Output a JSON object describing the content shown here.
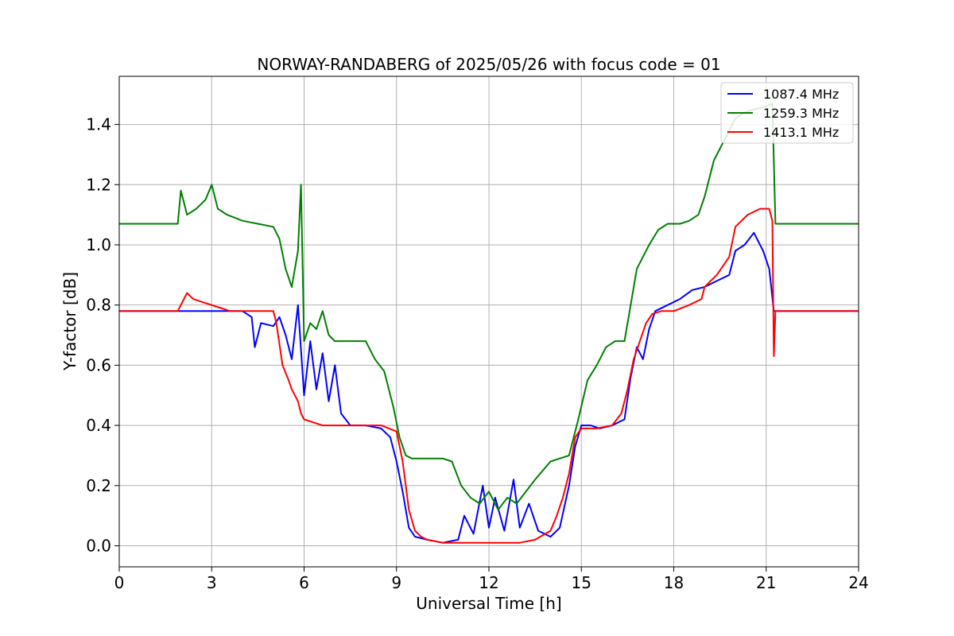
{
  "chart_data": {
    "type": "line",
    "title": "NORWAY-RANDABERG of 2025/05/26 with focus code = 01",
    "xlabel": "Universal Time [h]",
    "ylabel": "Y-factor [dB]",
    "xlim": [
      0,
      24
    ],
    "ylim": [
      -0.07,
      1.56
    ],
    "xticks": [
      0,
      3,
      6,
      9,
      12,
      15,
      18,
      21,
      24
    ],
    "xtick_labels": [
      "0",
      "3",
      "6",
      "9",
      "12",
      "15",
      "18",
      "21",
      "24"
    ],
    "yticks": [
      0.0,
      0.2,
      0.4,
      0.6,
      0.8,
      1.0,
      1.2,
      1.4
    ],
    "ytick_labels": [
      "0.0",
      "0.2",
      "0.4",
      "0.6",
      "0.8",
      "1.0",
      "1.2",
      "1.4"
    ],
    "grid": true,
    "legend_position": "top-right",
    "series": [
      {
        "name": "1087.4 MHz",
        "color": "#0000ff",
        "x": [
          0,
          0.5,
          1,
          1.5,
          2,
          2.5,
          3,
          3.5,
          4,
          4.3,
          4.4,
          4.6,
          5,
          5.2,
          5.4,
          5.6,
          5.8,
          6.0,
          6.2,
          6.4,
          6.6,
          6.8,
          7.0,
          7.2,
          7.5,
          8,
          8.5,
          8.8,
          9.0,
          9.2,
          9.4,
          9.6,
          10,
          10.5,
          11,
          11.2,
          11.5,
          11.8,
          12.0,
          12.2,
          12.5,
          12.8,
          13.0,
          13.3,
          13.6,
          14.0,
          14.3,
          14.6,
          14.8,
          15.0,
          15.3,
          15.6,
          16.0,
          16.4,
          16.6,
          16.8,
          17.0,
          17.2,
          17.4,
          17.8,
          18.2,
          18.6,
          19.0,
          19.4,
          19.8,
          20.0,
          20.3,
          20.6,
          20.9,
          21.1,
          21.25,
          21.3,
          21.6,
          22,
          22.5,
          23,
          23.5,
          24
        ],
        "y": [
          0.78,
          0.78,
          0.78,
          0.78,
          0.78,
          0.78,
          0.78,
          0.78,
          0.78,
          0.76,
          0.66,
          0.74,
          0.73,
          0.76,
          0.7,
          0.62,
          0.8,
          0.5,
          0.68,
          0.52,
          0.64,
          0.48,
          0.6,
          0.44,
          0.4,
          0.4,
          0.39,
          0.36,
          0.28,
          0.18,
          0.06,
          0.03,
          0.02,
          0.01,
          0.02,
          0.1,
          0.04,
          0.2,
          0.06,
          0.16,
          0.05,
          0.22,
          0.06,
          0.14,
          0.05,
          0.03,
          0.06,
          0.2,
          0.33,
          0.4,
          0.4,
          0.39,
          0.4,
          0.42,
          0.56,
          0.66,
          0.62,
          0.72,
          0.78,
          0.8,
          0.82,
          0.85,
          0.86,
          0.88,
          0.9,
          0.98,
          1.0,
          1.04,
          0.98,
          0.92,
          0.78,
          0.78,
          0.78,
          0.78,
          0.78,
          0.78,
          0.78,
          0.78
        ]
      },
      {
        "name": "1259.3 MHz",
        "color": "#008000",
        "x": [
          0,
          0.5,
          1,
          1.5,
          1.9,
          2.0,
          2.2,
          2.5,
          2.8,
          3.0,
          3.2,
          3.5,
          4,
          4.5,
          5,
          5.2,
          5.4,
          5.6,
          5.8,
          5.9,
          6.0,
          6.2,
          6.4,
          6.6,
          6.8,
          7.0,
          7.5,
          8,
          8.3,
          8.6,
          8.9,
          9.1,
          9.3,
          9.5,
          10,
          10.5,
          10.8,
          11.1,
          11.4,
          11.7,
          12.0,
          12.3,
          12.6,
          12.9,
          13.2,
          13.5,
          14,
          14.3,
          14.6,
          14.9,
          15.2,
          15.5,
          15.8,
          16.1,
          16.4,
          16.6,
          16.8,
          17.0,
          17.2,
          17.5,
          17.8,
          18.2,
          18.5,
          18.8,
          19.0,
          19.3,
          19.6,
          19.8,
          20.0,
          20.3,
          20.6,
          21.0,
          21.2,
          21.3,
          21.5,
          22,
          22.5,
          23,
          23.5,
          24
        ],
        "y": [
          1.07,
          1.07,
          1.07,
          1.07,
          1.07,
          1.18,
          1.1,
          1.12,
          1.15,
          1.2,
          1.12,
          1.1,
          1.08,
          1.07,
          1.06,
          1.02,
          0.92,
          0.86,
          0.98,
          1.2,
          0.68,
          0.74,
          0.72,
          0.78,
          0.7,
          0.68,
          0.68,
          0.68,
          0.62,
          0.58,
          0.46,
          0.36,
          0.3,
          0.29,
          0.29,
          0.29,
          0.28,
          0.2,
          0.16,
          0.14,
          0.18,
          0.12,
          0.16,
          0.14,
          0.18,
          0.22,
          0.28,
          0.29,
          0.3,
          0.42,
          0.55,
          0.6,
          0.66,
          0.68,
          0.68,
          0.8,
          0.92,
          0.96,
          1.0,
          1.05,
          1.07,
          1.07,
          1.08,
          1.1,
          1.16,
          1.28,
          1.34,
          1.38,
          1.42,
          1.44,
          1.45,
          1.46,
          1.47,
          1.07,
          1.07,
          1.07,
          1.07,
          1.07,
          1.07,
          1.07
        ]
      },
      {
        "name": "1413.1 MHz",
        "color": "#ff0000",
        "x": [
          0,
          0.5,
          1,
          1.5,
          1.9,
          2.0,
          2.2,
          2.4,
          2.7,
          3.0,
          3.3,
          3.6,
          4,
          4.5,
          5,
          5.1,
          5.3,
          5.5,
          5.6,
          5.8,
          5.9,
          6.0,
          6.3,
          6.6,
          7,
          7.5,
          8,
          8.5,
          9.0,
          9.2,
          9.4,
          9.6,
          9.8,
          10,
          10.5,
          11,
          11.5,
          12,
          12.5,
          13,
          13.5,
          14,
          14.2,
          14.4,
          14.6,
          14.8,
          15,
          15.5,
          16,
          16.3,
          16.5,
          16.7,
          16.9,
          17.1,
          17.3,
          17.6,
          18,
          18.5,
          18.9,
          19.0,
          19.4,
          19.8,
          20.0,
          20.4,
          20.8,
          21.1,
          21.2,
          21.25,
          21.3,
          21.6,
          22,
          22.5,
          23,
          23.5,
          24
        ],
        "y": [
          0.78,
          0.78,
          0.78,
          0.78,
          0.78,
          0.8,
          0.84,
          0.82,
          0.81,
          0.8,
          0.79,
          0.78,
          0.78,
          0.78,
          0.78,
          0.74,
          0.6,
          0.55,
          0.52,
          0.48,
          0.44,
          0.42,
          0.41,
          0.4,
          0.4,
          0.4,
          0.4,
          0.4,
          0.38,
          0.28,
          0.12,
          0.05,
          0.03,
          0.02,
          0.01,
          0.01,
          0.01,
          0.01,
          0.01,
          0.01,
          0.02,
          0.05,
          0.1,
          0.16,
          0.24,
          0.36,
          0.39,
          0.39,
          0.4,
          0.44,
          0.52,
          0.62,
          0.68,
          0.74,
          0.77,
          0.78,
          0.78,
          0.8,
          0.82,
          0.86,
          0.9,
          0.96,
          1.06,
          1.1,
          1.12,
          1.12,
          1.08,
          0.63,
          0.78,
          0.78,
          0.78,
          0.78,
          0.78,
          0.78,
          0.78
        ]
      }
    ]
  }
}
